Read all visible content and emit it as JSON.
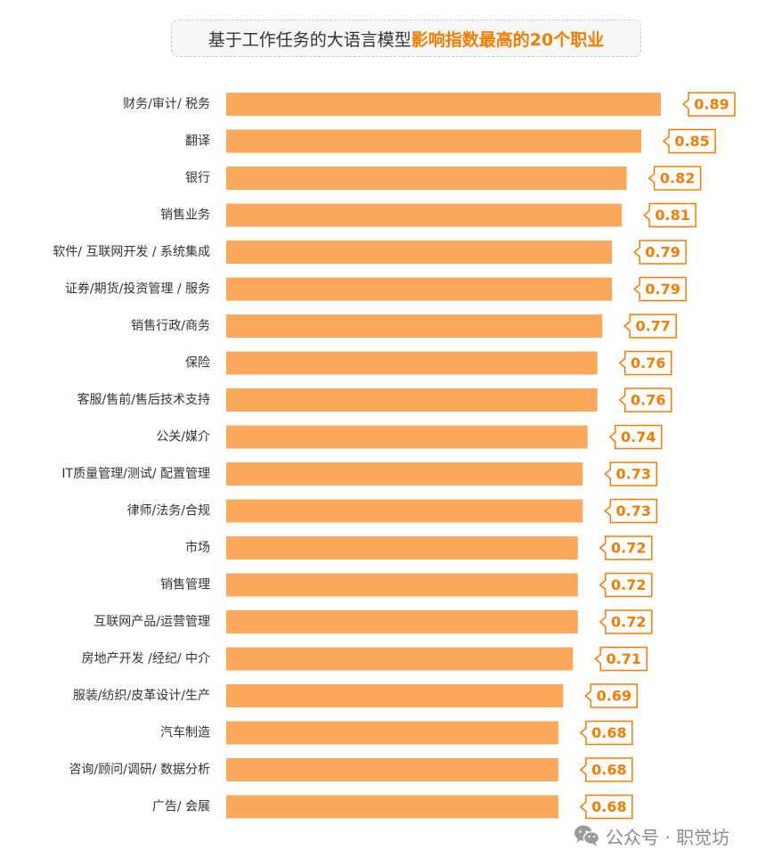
{
  "title": {
    "prefix": "基于工作任务的大语言模型",
    "highlight": "影响指数最高的20个职业"
  },
  "watermark": {
    "text": "公众号 · 职觉坊",
    "icon": "wechat-icon"
  },
  "colors": {
    "bar": "#fba85a",
    "label_border": "#f57c00",
    "label_text": "#f57c00",
    "category_text": "#333333"
  },
  "chart_data": {
    "type": "bar",
    "orientation": "horizontal",
    "title": "基于工作任务的大语言模型影响指数最高的20个职业",
    "categories": [
      "财务/审计/ 税务",
      "翻译",
      "银行",
      "销售业务",
      "软件/ 互联网开发 / 系统集成",
      "证券/期货/投资管理 / 服务",
      "销售行政/商务",
      "保险",
      "客服/售前/售后技术支持",
      "公关/媒介",
      "IT质量管理/测试/ 配置管理",
      "律师/法务/合规",
      "市场",
      "销售管理",
      "互联网产品/运营管理",
      "房地产开发 /经纪/ 中介",
      "服装/纺织/皮革设计/生产",
      "汽车制造",
      "咨询/顾问/调研/ 数据分析",
      "广告/ 会展"
    ],
    "values": [
      0.89,
      0.85,
      0.82,
      0.81,
      0.79,
      0.79,
      0.77,
      0.76,
      0.76,
      0.74,
      0.73,
      0.73,
      0.72,
      0.72,
      0.72,
      0.71,
      0.69,
      0.68,
      0.68,
      0.68
    ],
    "value_labels": [
      "0.89",
      "0.85",
      "0.82",
      "0.81",
      "0.79",
      "0.79",
      "0.77",
      "0.76",
      "0.76",
      "0.74",
      "0.73",
      "0.73",
      "0.72",
      "0.72",
      "0.72",
      "0.71",
      "0.69",
      "0.68",
      "0.68",
      "0.68"
    ],
    "xlim": [
      0,
      0.89
    ],
    "grid": false,
    "legend": "none"
  }
}
